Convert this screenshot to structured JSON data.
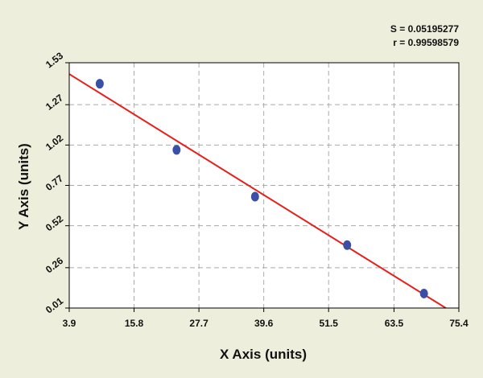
{
  "stats": {
    "s_text": "S = 0.05195277",
    "r_text": "r = 0.99598579"
  },
  "colors": {
    "background": "#eeeedd",
    "plot_area": "#ffffff",
    "points": "#3a4fa8",
    "fit_line": "#e8201a",
    "grid": "#aaaaaa"
  },
  "chart_data": {
    "type": "scatter",
    "xlabel": "X Axis (units)",
    "ylabel": "Y Axis (units)",
    "xlim": [
      3.9,
      75.4
    ],
    "ylim": [
      0.01,
      1.53
    ],
    "x_ticks": [
      "3.9",
      "15.8",
      "27.7",
      "39.6",
      "51.5",
      "63.5",
      "75.4"
    ],
    "y_ticks": [
      "0.01",
      "0.26",
      "0.52",
      "0.77",
      "1.02",
      "1.27",
      "1.53"
    ],
    "grid": true,
    "points": [
      {
        "x": 9.5,
        "y": 1.4
      },
      {
        "x": 23.6,
        "y": 0.99
      },
      {
        "x": 38.0,
        "y": 0.7
      },
      {
        "x": 54.9,
        "y": 0.4
      },
      {
        "x": 69.0,
        "y": 0.1
      }
    ],
    "fit_line": {
      "x": [
        3.9,
        73.0
      ],
      "y": [
        1.46,
        0.01
      ]
    }
  }
}
